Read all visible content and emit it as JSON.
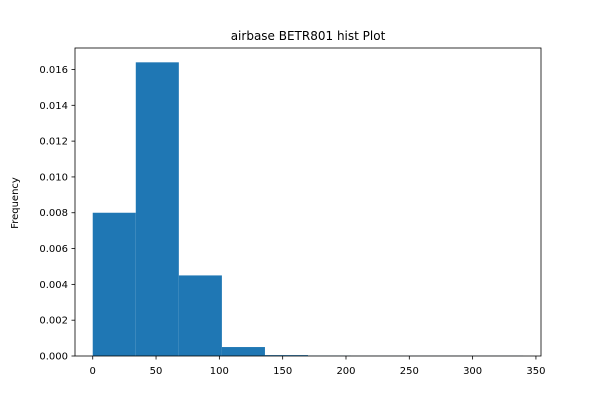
{
  "chart_data": {
    "type": "bar",
    "title": "airbase BETR801 hist Plot",
    "xlabel": "",
    "ylabel": "Frequency",
    "xlim": [
      -14,
      354
    ],
    "ylim": [
      0,
      0.0172
    ],
    "grid": false,
    "bar_color": "#1f77b4",
    "bins": [
      {
        "x0": 0,
        "x1": 34,
        "value": 0.008
      },
      {
        "x0": 34,
        "x1": 68,
        "value": 0.0164
      },
      {
        "x0": 68,
        "x1": 102,
        "value": 0.0045
      },
      {
        "x0": 102,
        "x1": 136,
        "value": 0.0005
      },
      {
        "x0": 136,
        "x1": 170,
        "value": 5e-05
      },
      {
        "x0": 170,
        "x1": 204,
        "value": 2e-05
      },
      {
        "x0": 204,
        "x1": 238,
        "value": 1e-05
      },
      {
        "x0": 238,
        "x1": 272,
        "value": 1e-05
      },
      {
        "x0": 272,
        "x1": 306,
        "value": 1e-05
      },
      {
        "x0": 306,
        "x1": 340,
        "value": 1e-05
      }
    ],
    "x_ticks": [
      {
        "value": 0,
        "label": "0"
      },
      {
        "value": 50,
        "label": "50"
      },
      {
        "value": 100,
        "label": "100"
      },
      {
        "value": 150,
        "label": "150"
      },
      {
        "value": 200,
        "label": "200"
      },
      {
        "value": 250,
        "label": "250"
      },
      {
        "value": 300,
        "label": "300"
      },
      {
        "value": 350,
        "label": "350"
      }
    ],
    "y_ticks": [
      {
        "value": 0,
        "label": "0.000"
      },
      {
        "value": 0.002,
        "label": "0.002"
      },
      {
        "value": 0.004,
        "label": "0.004"
      },
      {
        "value": 0.006,
        "label": "0.006"
      },
      {
        "value": 0.008,
        "label": "0.008"
      },
      {
        "value": 0.01,
        "label": "0.010"
      },
      {
        "value": 0.012,
        "label": "0.012"
      },
      {
        "value": 0.014,
        "label": "0.014"
      },
      {
        "value": 0.016,
        "label": "0.016"
      }
    ]
  }
}
